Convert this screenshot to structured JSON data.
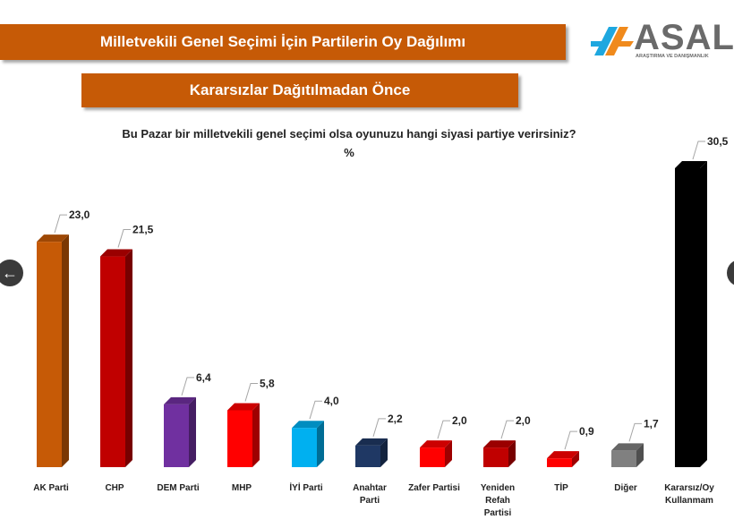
{
  "header": {
    "title": "Milletvekili Genel Seçimi İçin Partilerin Oy Dağılımı",
    "subtitle": "Kararsızlar Dağıtılmadan Önce"
  },
  "logo": {
    "word": "ASAL",
    "tagline": "ARAŞTIRMA VE DANIŞMANLIK"
  },
  "navigation": {
    "prev_icon": "←",
    "next_icon": ""
  },
  "chart_data": {
    "type": "bar",
    "title": "Bu Pazar bir milletvekili genel seçimi olsa oyunuzu hangi siyasi partiye verirsiniz?",
    "unit": "%",
    "categories": [
      [
        "AK Parti"
      ],
      [
        "CHP"
      ],
      [
        "DEM Parti"
      ],
      [
        "MHP"
      ],
      [
        "İYİ Parti"
      ],
      [
        "Anahtar",
        "Parti"
      ],
      [
        "Zafer Partisi"
      ],
      [
        "Yeniden",
        "Refah",
        "Partisi"
      ],
      [
        "TİP"
      ],
      [
        "Diğer"
      ],
      [
        "Kararsız/Oy",
        "Kullanmam"
      ]
    ],
    "values": [
      23.0,
      21.5,
      6.4,
      5.8,
      4.0,
      2.2,
      2.0,
      2.0,
      0.9,
      1.7,
      30.5
    ],
    "value_labels": [
      "23,0",
      "21,5",
      "6,4",
      "5,8",
      "4,0",
      "2,2",
      "2,0",
      "2,0",
      "0,9",
      "1,7",
      "30,5"
    ],
    "colors": [
      "#c65a06",
      "#c00000",
      "#7030a0",
      "#ff0000",
      "#00b0f0",
      "#1f3864",
      "#ff0000",
      "#c00000",
      "#ff0000",
      "#808080",
      "#000000"
    ],
    "ylim": [
      0,
      31
    ],
    "grid": false,
    "legend": "none"
  }
}
